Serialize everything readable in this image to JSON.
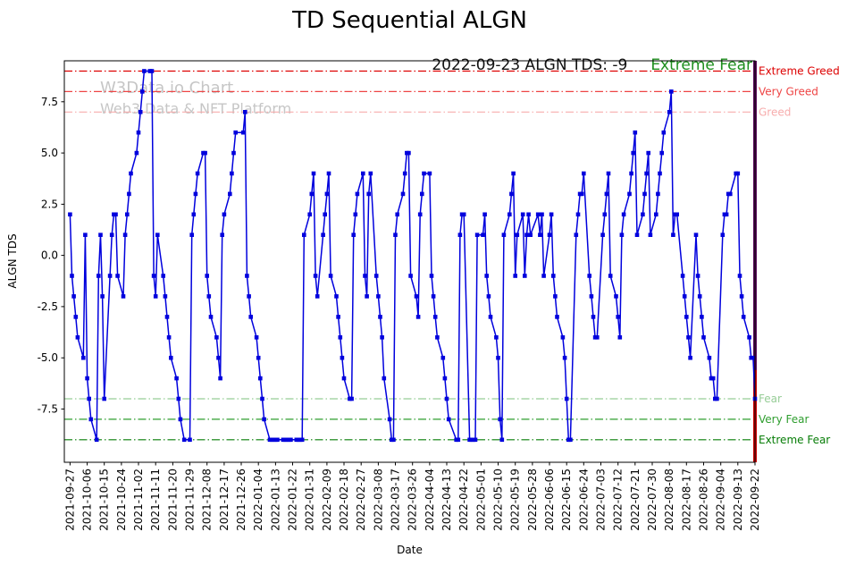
{
  "watermark": {
    "line1": "W3Data.io Chart",
    "line2": "Web3 Data & NFT Platform"
  },
  "annotation": {
    "text": "2022-09-23 ALGN TDS: -9",
    "sentiment": "Extreme Fear",
    "sentiment_color": "#1e8e1e"
  },
  "last_day_line": {
    "date": "2022-09-22",
    "color": "#5a0a5a",
    "color_lower": "#cc0000"
  },
  "chart_data": {
    "type": "line",
    "title": "TD Sequential ALGN",
    "xlabel": "Date",
    "ylabel": "ALGN TDS",
    "series_name": "ALGN TDS",
    "series_color": "#0000dd",
    "marker": "square",
    "grid": false,
    "ylim": [
      -10.1,
      9.5
    ],
    "yticks": [
      7.5,
      5.0,
      2.5,
      0.0,
      -2.5,
      -5.0,
      -7.5
    ],
    "xticks": [
      "2021-09-27",
      "2021-10-06",
      "2021-10-15",
      "2021-10-24",
      "2021-11-02",
      "2021-11-11",
      "2021-11-20",
      "2021-11-29",
      "2021-12-08",
      "2021-12-17",
      "2021-12-26",
      "2022-01-04",
      "2022-01-13",
      "2022-01-22",
      "2022-01-31",
      "2022-02-09",
      "2022-02-18",
      "2022-02-27",
      "2022-03-08",
      "2022-03-17",
      "2022-03-26",
      "2022-04-04",
      "2022-04-13",
      "2022-04-22",
      "2022-05-01",
      "2022-05-10",
      "2022-05-19",
      "2022-05-28",
      "2022-06-06",
      "2022-06-15",
      "2022-06-24",
      "2022-07-03",
      "2022-07-12",
      "2022-07-21",
      "2022-07-30",
      "2022-08-08",
      "2022-08-17",
      "2022-08-26",
      "2022-09-04",
      "2022-09-13",
      "2022-09-22"
    ],
    "thresholds": [
      {
        "label": "Extreme Greed",
        "value": 9,
        "color": "#dd0000"
      },
      {
        "label": "Very Greed",
        "value": 8,
        "color": "#ee4444"
      },
      {
        "label": "Greed",
        "value": 7,
        "color": "#f7adad"
      },
      {
        "label": "Fear",
        "value": -7,
        "color": "#97cd97"
      },
      {
        "label": "Very Fear",
        "value": -8,
        "color": "#2f9e2f"
      },
      {
        "label": "Extreme Fear",
        "value": -9,
        "color": "#077d07"
      }
    ],
    "x": [
      "2021-09-27",
      "2021-09-28",
      "2021-09-29",
      "2021-09-30",
      "2021-10-01",
      "2021-10-04",
      "2021-10-05",
      "2021-10-06",
      "2021-10-07",
      "2021-10-08",
      "2021-10-11",
      "2021-10-12",
      "2021-10-13",
      "2021-10-14",
      "2021-10-15",
      "2021-10-18",
      "2021-10-19",
      "2021-10-20",
      "2021-10-21",
      "2021-10-22",
      "2021-10-25",
      "2021-10-26",
      "2021-10-27",
      "2021-10-28",
      "2021-10-29",
      "2021-11-01",
      "2021-11-02",
      "2021-11-03",
      "2021-11-04",
      "2021-11-05",
      "2021-11-08",
      "2021-11-09",
      "2021-11-10",
      "2021-11-11",
      "2021-11-12",
      "2021-11-15",
      "2021-11-16",
      "2021-11-17",
      "2021-11-18",
      "2021-11-19",
      "2021-11-22",
      "2021-11-23",
      "2021-11-24",
      "2021-11-26",
      "2021-11-29",
      "2021-11-30",
      "2021-12-01",
      "2021-12-02",
      "2021-12-03",
      "2021-12-06",
      "2021-12-07",
      "2021-12-08",
      "2021-12-09",
      "2021-12-10",
      "2021-12-13",
      "2021-12-14",
      "2021-12-15",
      "2021-12-16",
      "2021-12-17",
      "2021-12-20",
      "2021-12-21",
      "2021-12-22",
      "2021-12-23",
      "2021-12-27",
      "2021-12-28",
      "2021-12-29",
      "2021-12-30",
      "2021-12-31",
      "2022-01-03",
      "2022-01-04",
      "2022-01-05",
      "2022-01-06",
      "2022-01-07",
      "2022-01-10",
      "2022-01-11",
      "2022-01-12",
      "2022-01-13",
      "2022-01-14",
      "2022-01-17",
      "2022-01-18",
      "2022-01-19",
      "2022-01-20",
      "2022-01-21",
      "2022-01-24",
      "2022-01-25",
      "2022-01-26",
      "2022-01-27",
      "2022-01-28",
      "2022-01-31",
      "2022-02-01",
      "2022-02-02",
      "2022-02-03",
      "2022-02-04",
      "2022-02-07",
      "2022-02-08",
      "2022-02-09",
      "2022-02-10",
      "2022-02-11",
      "2022-02-14",
      "2022-02-15",
      "2022-02-16",
      "2022-02-17",
      "2022-02-18",
      "2022-02-21",
      "2022-02-22",
      "2022-02-23",
      "2022-02-24",
      "2022-02-25",
      "2022-02-28",
      "2022-03-01",
      "2022-03-02",
      "2022-03-03",
      "2022-03-04",
      "2022-03-07",
      "2022-03-08",
      "2022-03-09",
      "2022-03-10",
      "2022-03-11",
      "2022-03-14",
      "2022-03-15",
      "2022-03-16",
      "2022-03-17",
      "2022-03-18",
      "2022-03-21",
      "2022-03-22",
      "2022-03-23",
      "2022-03-24",
      "2022-03-25",
      "2022-03-28",
      "2022-03-29",
      "2022-03-30",
      "2022-03-31",
      "2022-04-01",
      "2022-04-04",
      "2022-04-05",
      "2022-04-06",
      "2022-04-07",
      "2022-04-08",
      "2022-04-11",
      "2022-04-12",
      "2022-04-13",
      "2022-04-14",
      "2022-04-18",
      "2022-04-19",
      "2022-04-20",
      "2022-04-21",
      "2022-04-22",
      "2022-04-25",
      "2022-04-26",
      "2022-04-27",
      "2022-04-28",
      "2022-04-29",
      "2022-05-02",
      "2022-05-03",
      "2022-05-04",
      "2022-05-05",
      "2022-05-06",
      "2022-05-09",
      "2022-05-10",
      "2022-05-11",
      "2022-05-12",
      "2022-05-13",
      "2022-05-16",
      "2022-05-17",
      "2022-05-18",
      "2022-05-19",
      "2022-05-20",
      "2022-05-23",
      "2022-05-24",
      "2022-05-25",
      "2022-05-26",
      "2022-05-27",
      "2022-05-31",
      "2022-06-01",
      "2022-06-02",
      "2022-06-03",
      "2022-06-06",
      "2022-06-07",
      "2022-06-08",
      "2022-06-09",
      "2022-06-10",
      "2022-06-13",
      "2022-06-14",
      "2022-06-15",
      "2022-06-16",
      "2022-06-17",
      "2022-06-20",
      "2022-06-21",
      "2022-06-22",
      "2022-06-23",
      "2022-06-24",
      "2022-06-27",
      "2022-06-28",
      "2022-06-29",
      "2022-06-30",
      "2022-07-01",
      "2022-07-04",
      "2022-07-05",
      "2022-07-06",
      "2022-07-07",
      "2022-07-08",
      "2022-07-11",
      "2022-07-12",
      "2022-07-13",
      "2022-07-14",
      "2022-07-15",
      "2022-07-18",
      "2022-07-19",
      "2022-07-20",
      "2022-07-21",
      "2022-07-22",
      "2022-07-25",
      "2022-07-26",
      "2022-07-27",
      "2022-07-28",
      "2022-07-29",
      "2022-08-01",
      "2022-08-02",
      "2022-08-03",
      "2022-08-04",
      "2022-08-05",
      "2022-08-08",
      "2022-08-09",
      "2022-08-10",
      "2022-08-11",
      "2022-08-12",
      "2022-08-15",
      "2022-08-16",
      "2022-08-17",
      "2022-08-18",
      "2022-08-19",
      "2022-08-22",
      "2022-08-23",
      "2022-08-24",
      "2022-08-25",
      "2022-08-26",
      "2022-08-29",
      "2022-08-30",
      "2022-08-31",
      "2022-09-01",
      "2022-09-02",
      "2022-09-05",
      "2022-09-06",
      "2022-09-07",
      "2022-09-08",
      "2022-09-09",
      "2022-09-12",
      "2022-09-13",
      "2022-09-14",
      "2022-09-15",
      "2022-09-16",
      "2022-09-19",
      "2022-09-20",
      "2022-09-21",
      "2022-09-22"
    ],
    "values": [
      2,
      -1,
      -2,
      -3,
      -4,
      -5,
      1,
      -6,
      -7,
      -8,
      -9,
      -1,
      1,
      -2,
      -7,
      -1,
      1,
      2,
      2,
      -1,
      -2,
      1,
      2,
      3,
      4,
      5,
      6,
      7,
      8,
      9,
      9,
      9,
      -1,
      -2,
      1,
      -1,
      -2,
      -3,
      -4,
      -5,
      -6,
      -7,
      -8,
      -9,
      -9,
      1,
      2,
      3,
      4,
      5,
      5,
      -1,
      -2,
      -3,
      -4,
      -5,
      -6,
      1,
      2,
      3,
      4,
      5,
      6,
      6,
      7,
      -1,
      -2,
      -3,
      -4,
      -5,
      -6,
      -7,
      -8,
      -9,
      -9,
      -9,
      -9,
      -9,
      -9,
      -9,
      -9,
      -9,
      -9,
      -9,
      -9,
      -9,
      -9,
      1,
      2,
      3,
      4,
      -1,
      -2,
      1,
      2,
      3,
      4,
      -1,
      -2,
      -3,
      -4,
      -5,
      -6,
      -7,
      -7,
      1,
      2,
      3,
      4,
      -1,
      -2,
      3,
      4,
      -1,
      -2,
      -3,
      -4,
      -6,
      -8,
      -9,
      -9,
      1,
      2,
      3,
      4,
      5,
      5,
      -1,
      -2,
      -3,
      2,
      3,
      4,
      4,
      -1,
      -2,
      -3,
      -4,
      -5,
      -6,
      -7,
      -8,
      -9,
      -9,
      1,
      2,
      2,
      -9,
      -9,
      -9,
      -9,
      1,
      1,
      2,
      -1,
      -2,
      -3,
      -4,
      -5,
      -8,
      -9,
      1,
      2,
      3,
      4,
      -1,
      1,
      2,
      -1,
      1,
      2,
      1,
      2,
      1,
      2,
      -1,
      1,
      2,
      -1,
      -2,
      -3,
      -4,
      -5,
      -7,
      -9,
      -9,
      1,
      2,
      3,
      3,
      4,
      -1,
      -2,
      -3,
      -4,
      -4,
      1,
      2,
      3,
      4,
      -1,
      -2,
      -3,
      -4,
      1,
      2,
      3,
      4,
      5,
      6,
      1,
      2,
      3,
      4,
      5,
      1,
      2,
      3,
      4,
      5,
      6,
      7,
      8,
      1,
      2,
      2,
      -1,
      -2,
      -3,
      -4,
      -5,
      1,
      -1,
      -2,
      -3,
      -4,
      -5,
      -6,
      -6,
      -7,
      -7,
      1,
      2,
      2,
      3,
      3,
      4,
      4,
      -1,
      -2,
      -3,
      -4,
      -5,
      -5,
      -7
    ]
  }
}
